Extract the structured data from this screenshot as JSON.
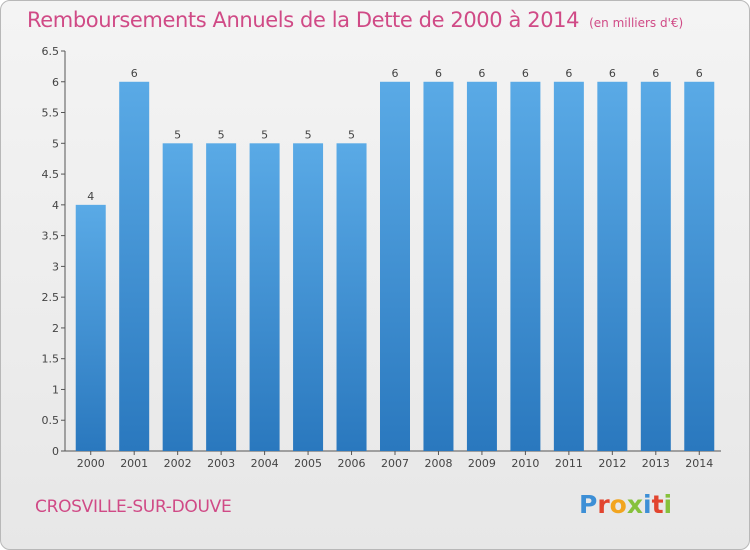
{
  "header": {
    "title": "Remboursements Annuels de la Dette de 2000 à 2014",
    "unit": "(en milliers d'€)"
  },
  "footer": {
    "commune": "CROSVILLE-SUR-DOUVE",
    "logo_letters": [
      "P",
      "r",
      "o",
      "x",
      "i",
      "t",
      "i"
    ]
  },
  "colors": {
    "title": "#d04a86",
    "bar_top": "#5aaae6",
    "bar_bottom": "#2a78be",
    "logo": [
      "#3d8fd6",
      "#e2452f",
      "#f2a51f",
      "#86c13b",
      "#3d8fd6",
      "#e2452f",
      "#86c13b"
    ]
  },
  "chart_data": {
    "type": "bar",
    "categories": [
      "2000",
      "2001",
      "2002",
      "2003",
      "2004",
      "2005",
      "2006",
      "2007",
      "2008",
      "2009",
      "2010",
      "2011",
      "2012",
      "2013",
      "2014"
    ],
    "values": [
      4,
      6,
      5,
      5,
      5,
      5,
      5,
      6,
      6,
      6,
      6,
      6,
      6,
      6,
      6
    ],
    "data_labels": [
      "4",
      "6",
      "5",
      "5",
      "5",
      "5",
      "5",
      "6",
      "6",
      "6",
      "6",
      "6",
      "6",
      "6",
      "6"
    ],
    "ylim": [
      0,
      6.5
    ],
    "yticks": [
      0,
      0.5,
      1,
      1.5,
      2,
      2.5,
      3,
      3.5,
      4,
      4.5,
      5,
      5.5,
      6,
      6.5
    ],
    "ytick_labels": [
      "0",
      "0.5",
      "1",
      "1.5",
      "2",
      "2.5",
      "3",
      "3.5",
      "4",
      "4.5",
      "5",
      "5.5",
      "6",
      "6.5"
    ],
    "grid": false,
    "title": "Remboursements Annuels de la Dette de 2000 à 2014",
    "xlabel": "",
    "ylabel": ""
  }
}
